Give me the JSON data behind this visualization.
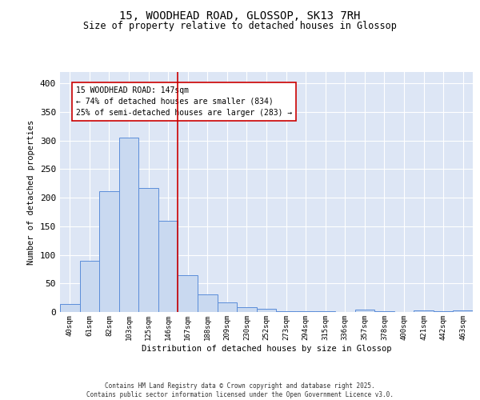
{
  "title": "15, WOODHEAD ROAD, GLOSSOP, SK13 7RH",
  "subtitle": "Size of property relative to detached houses in Glossop",
  "xlabel": "Distribution of detached houses by size in Glossop",
  "ylabel": "Number of detached properties",
  "bar_labels": [
    "40sqm",
    "61sqm",
    "82sqm",
    "103sqm",
    "125sqm",
    "146sqm",
    "167sqm",
    "188sqm",
    "209sqm",
    "230sqm",
    "252sqm",
    "273sqm",
    "294sqm",
    "315sqm",
    "336sqm",
    "357sqm",
    "378sqm",
    "400sqm",
    "421sqm",
    "442sqm",
    "463sqm"
  ],
  "bar_values": [
    14,
    90,
    212,
    305,
    217,
    160,
    64,
    31,
    17,
    8,
    5,
    2,
    1,
    1,
    0,
    4,
    1,
    0,
    3,
    1,
    3
  ],
  "bar_color": "#c9d9f0",
  "bar_edge_color": "#5b8dd9",
  "vline_x": 5.5,
  "vline_color": "#cc0000",
  "annotation_text": "15 WOODHEAD ROAD: 147sqm\n← 74% of detached houses are smaller (834)\n25% of semi-detached houses are larger (283) →",
  "annotation_box_color": "#ffffff",
  "annotation_box_edge": "#cc0000",
  "ylim": [
    0,
    420
  ],
  "yticks": [
    0,
    50,
    100,
    150,
    200,
    250,
    300,
    350,
    400
  ],
  "bg_color": "#dde6f5",
  "grid_color": "#ffffff",
  "footer_line1": "Contains HM Land Registry data © Crown copyright and database right 2025.",
  "footer_line2": "Contains public sector information licensed under the Open Government Licence v3.0."
}
